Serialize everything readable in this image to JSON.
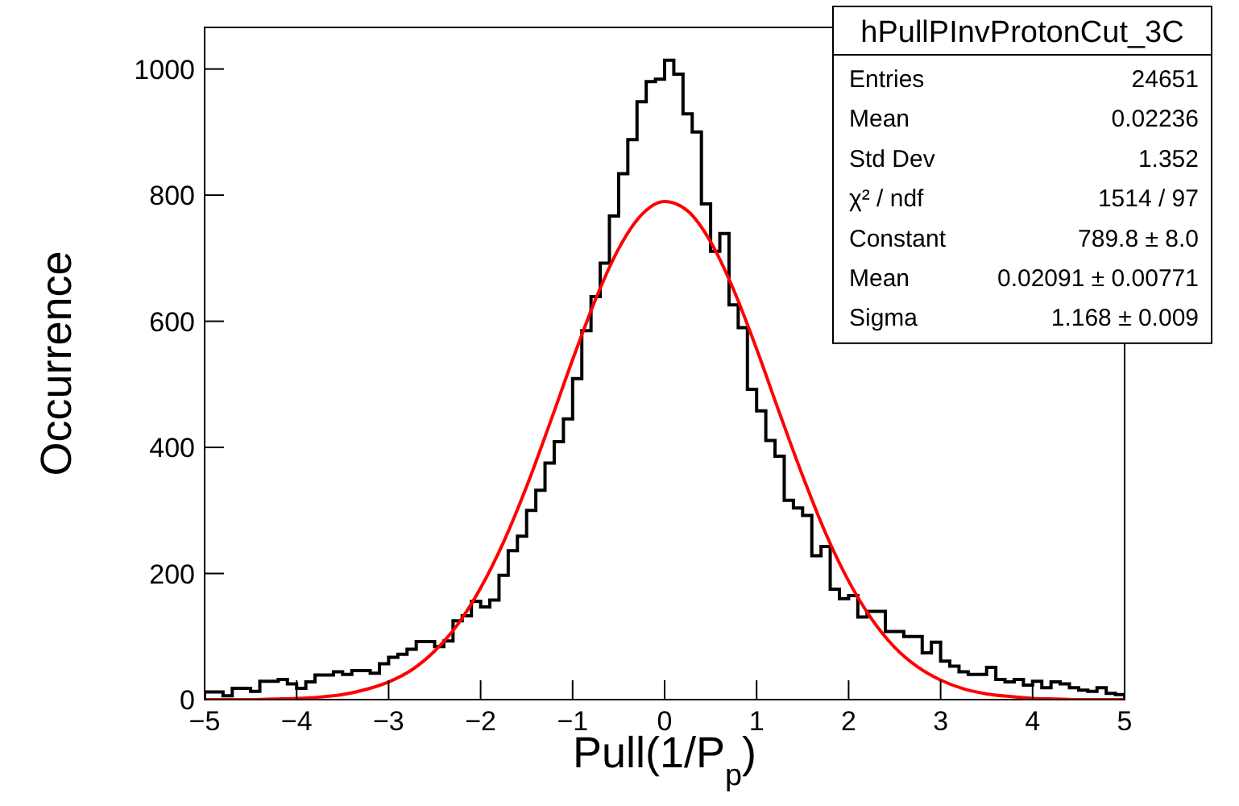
{
  "chart_data": {
    "type": "histogram",
    "title": "hPullPInvProtonCut_3C",
    "xlabel": "Pull(1/P$_{p}$)",
    "ylabel": "Occurrence",
    "annotations": [
      "Entries",
      "24651",
      "Mean",
      "0.02236",
      "Std Dev",
      "1.352",
      "χ² / ndf",
      "1514 / 97",
      "Constant",
      "789.8 ± 8.0",
      "Mean",
      "0.02091 ± 0.00771",
      "Sigma",
      "1.168 ± 0.009"
    ],
    "bins": [
      -5,
      -4.9,
      -4.8,
      -4.7,
      -4.6,
      -4.5,
      -4.4,
      -4.3,
      -4.2,
      -4.1,
      -4,
      -3.9,
      -3.8,
      -3.7,
      -3.6,
      -3.5,
      -3.4,
      -3.3,
      -3.2,
      -3.1,
      -3,
      -2.9,
      -2.8,
      -2.7,
      -2.6,
      -2.5,
      -2.4,
      -2.3,
      -2.2,
      -2.1,
      -2,
      -1.9,
      -1.8,
      -1.7,
      -1.6,
      -1.5,
      -1.4,
      -1.3,
      -1.2,
      -1.1,
      -1,
      -0.9,
      -0.8,
      -0.7,
      -0.6,
      -0.5,
      -0.4,
      -0.3,
      -0.2,
      -0.1,
      0,
      0.1,
      0.2,
      0.3,
      0.4,
      0.5,
      0.6,
      0.7,
      0.8,
      0.9,
      1,
      1.1,
      1.2,
      1.3,
      1.4,
      1.5,
      1.6,
      1.7,
      1.8,
      1.9,
      2,
      2.1,
      2.2,
      2.3,
      2.4,
      2.5,
      2.6,
      2.7,
      2.8,
      2.9,
      3,
      3.1,
      3.2,
      3.3,
      3.4,
      3.5,
      3.6,
      3.7,
      3.8,
      3.9,
      4,
      4.1,
      4.2,
      4.3,
      4.4,
      4.5,
      4.6,
      4.7,
      4.8,
      4.9,
      5
    ],
    "series": [
      {
        "color": "#000000",
        "values": [
          12,
          12,
          6,
          18,
          18,
          13,
          29,
          29,
          32,
          25,
          18,
          28,
          39,
          39,
          44,
          40,
          46,
          46,
          42,
          57,
          67,
          72,
          80,
          92,
          92,
          84,
          93,
          125,
          133,
          156,
          147,
          158,
          197,
          236,
          259,
          300,
          332,
          375,
          409,
          445,
          509,
          585,
          639,
          692,
          767,
          834,
          888,
          948,
          980,
          984,
          1014,
          992,
          929,
          900,
          786,
          711,
          739,
          626,
          590,
          492,
          458,
          411,
          386,
          316,
          304,
          292,
          228,
          243,
          175,
          160,
          165,
          131,
          140,
          140,
          108,
          108,
          100,
          100,
          74,
          91,
          61,
          53,
          44,
          40,
          40,
          51,
          32,
          28,
          32,
          23,
          29,
          19,
          28,
          25,
          19,
          15,
          13,
          19,
          10,
          8
        ]
      },
      {
        "type": "line",
        "color": "#ff0000",
        "x": [
          -5,
          -4.75,
          -4.5,
          -4.25,
          -4,
          -3.75,
          -3.5,
          -3.25,
          -3,
          -2.75,
          -2.5,
          -2.25,
          -2,
          -1.75,
          -1.5,
          -1.25,
          -1,
          -0.75,
          -0.5,
          -0.25,
          0,
          0.25,
          0.5,
          0.75,
          1,
          1.25,
          1.5,
          1.75,
          2,
          2.25,
          2.5,
          2.75,
          3,
          3.25,
          3.5,
          3.75,
          4,
          4.25,
          4.5,
          4.75,
          5
        ],
        "values": [
          0,
          0,
          0,
          1,
          2,
          4,
          8,
          16,
          28,
          47,
          77,
          119,
          177,
          250,
          338,
          437,
          539,
          635,
          715,
          769,
          790,
          775,
          726,
          650,
          556,
          454,
          355,
          264,
          188,
          128,
          83,
          52,
          31,
          17,
          9,
          5,
          2,
          1,
          0,
          0,
          0
        ]
      }
    ],
    "xlim": [
      -5,
      5
    ],
    "xticks": [
      -5,
      -4,
      -3,
      -2,
      -1,
      0,
      1,
      2,
      3,
      4,
      5
    ],
    "ylim": [
      0,
      1066
    ],
    "yticks": [
      0,
      200,
      400,
      600,
      800,
      1000
    ],
    "grid": false,
    "line_style": "solid",
    "marker": "none"
  }
}
